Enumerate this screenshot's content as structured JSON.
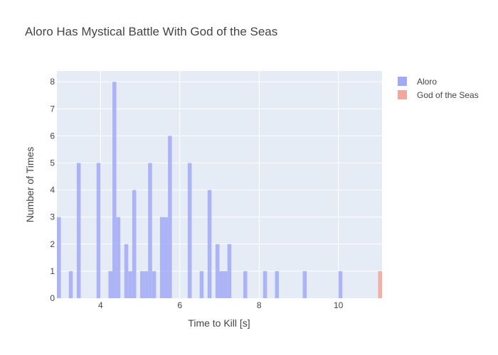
{
  "chart_data": {
    "type": "bar",
    "title": "Aloro Has Mystical Battle With God of the Seas",
    "xlabel": "Time to Kill [s]",
    "ylabel": "Number of Times",
    "xlim": [
      2.9,
      11.1
    ],
    "ylim": [
      0,
      8.4
    ],
    "x_ticks": [
      4,
      6,
      8,
      10
    ],
    "y_ticks": [
      0,
      1,
      2,
      3,
      4,
      5,
      6,
      7,
      8
    ],
    "bin_width": 0.1,
    "grid": true,
    "legend_position": "top-right",
    "series": [
      {
        "name": "Aloro",
        "color": "#a2aaf6",
        "bins": [
          {
            "x": 2.95,
            "count": 3
          },
          {
            "x": 3.25,
            "count": 1
          },
          {
            "x": 3.45,
            "count": 5
          },
          {
            "x": 3.95,
            "count": 5
          },
          {
            "x": 4.25,
            "count": 1
          },
          {
            "x": 4.35,
            "count": 8
          },
          {
            "x": 4.45,
            "count": 3
          },
          {
            "x": 4.65,
            "count": 2
          },
          {
            "x": 4.75,
            "count": 1
          },
          {
            "x": 4.85,
            "count": 4
          },
          {
            "x": 5.05,
            "count": 1
          },
          {
            "x": 5.15,
            "count": 1
          },
          {
            "x": 5.25,
            "count": 5
          },
          {
            "x": 5.35,
            "count": 1
          },
          {
            "x": 5.55,
            "count": 3
          },
          {
            "x": 5.65,
            "count": 3
          },
          {
            "x": 5.75,
            "count": 6
          },
          {
            "x": 6.25,
            "count": 5
          },
          {
            "x": 6.55,
            "count": 1
          },
          {
            "x": 6.75,
            "count": 4
          },
          {
            "x": 6.95,
            "count": 2
          },
          {
            "x": 7.05,
            "count": 1
          },
          {
            "x": 7.15,
            "count": 1
          },
          {
            "x": 7.25,
            "count": 2
          },
          {
            "x": 7.65,
            "count": 1
          },
          {
            "x": 8.15,
            "count": 1
          },
          {
            "x": 8.45,
            "count": 1
          },
          {
            "x": 9.15,
            "count": 1
          },
          {
            "x": 10.05,
            "count": 1
          }
        ]
      },
      {
        "name": "God of the Seas",
        "color": "#f5a69a",
        "bins": [
          {
            "x": 11.05,
            "count": 1
          }
        ]
      }
    ]
  }
}
